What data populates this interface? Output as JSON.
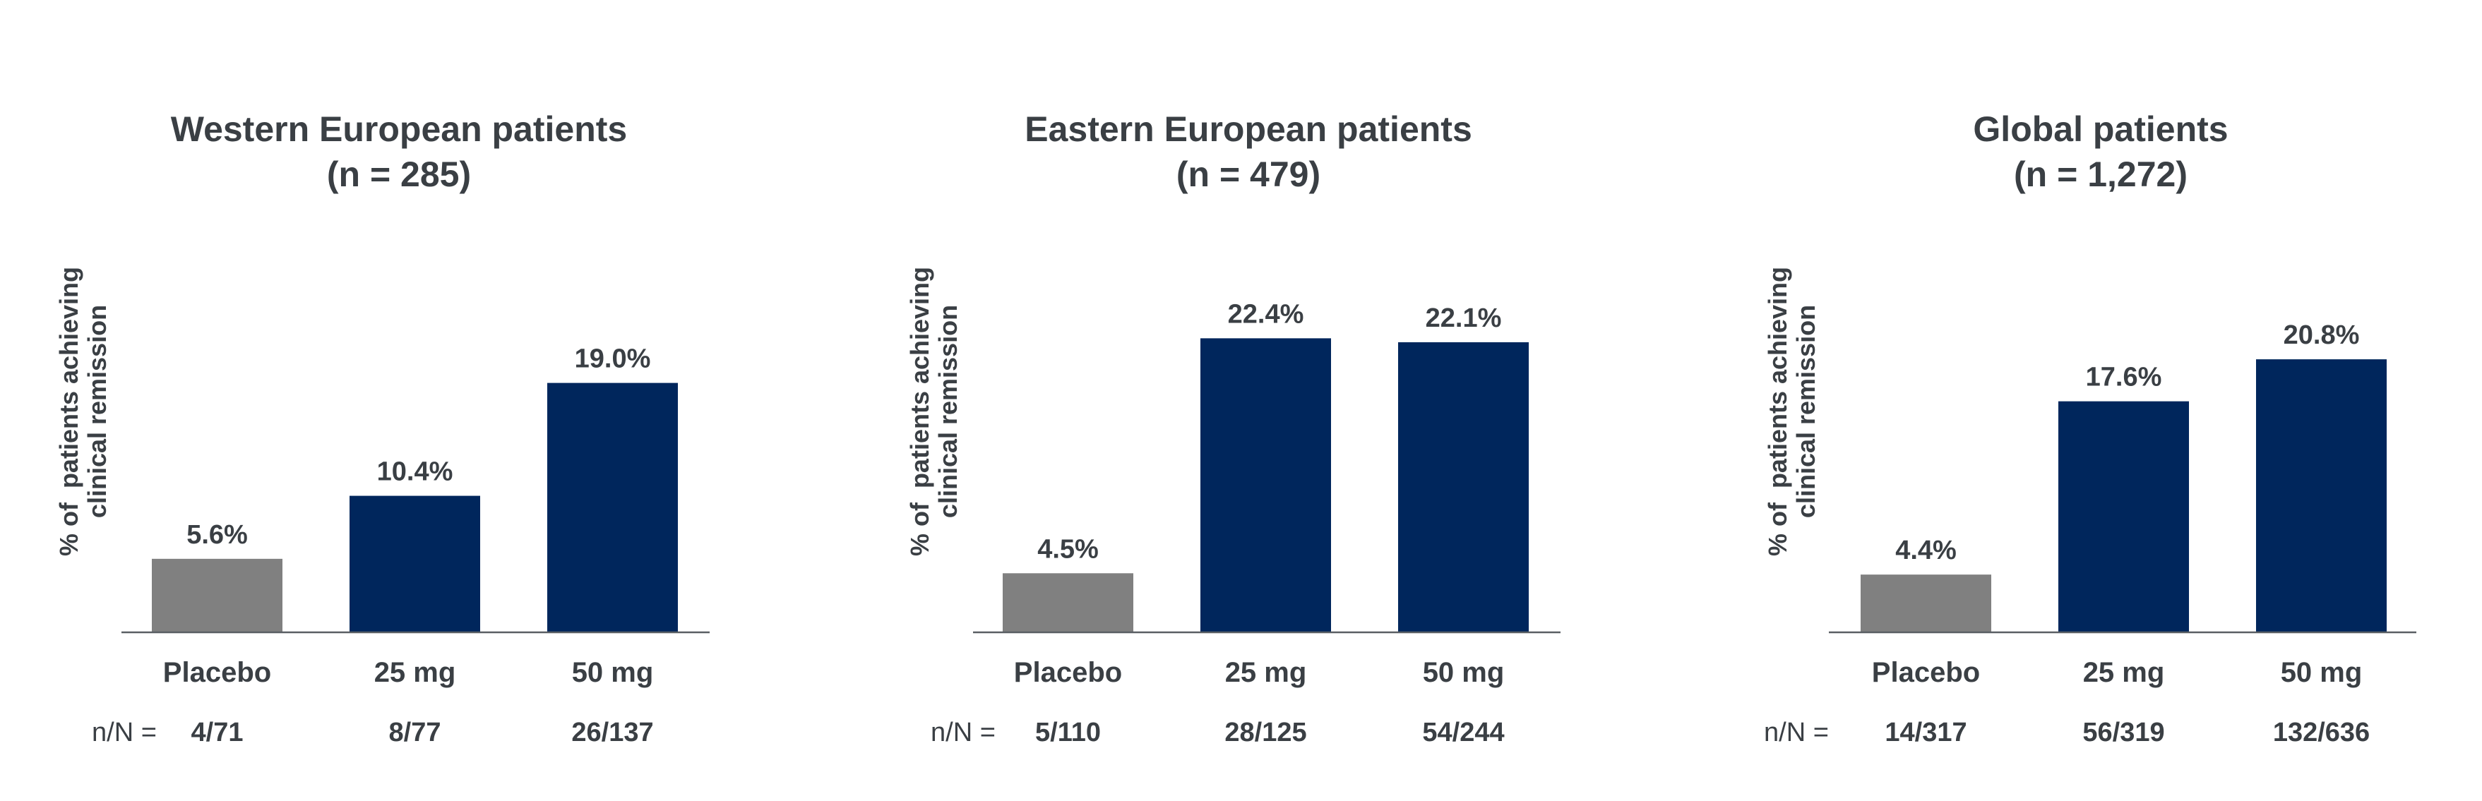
{
  "colors": {
    "text": "#3a3f44",
    "placebo": "#808080",
    "treatment": "#00265c",
    "axis": "#5a5f64"
  },
  "nN_label": "n/N =",
  "chart_data": [
    {
      "type": "bar",
      "title": "Western European patients",
      "subtitle": "(n = 285)",
      "ylabel_lines": [
        "% of  patients achieving",
        "clinical remission"
      ],
      "ylim": [
        0,
        30
      ],
      "categories": [
        "Placebo",
        "25 mg",
        "50 mg"
      ],
      "values": [
        5.6,
        10.4,
        19.0
      ],
      "value_labels": [
        "5.6%",
        "10.4%",
        "19.0%"
      ],
      "nN": [
        "4/71",
        "8/77",
        "26/137"
      ]
    },
    {
      "type": "bar",
      "title": "Eastern European patients",
      "subtitle": "(n = 479)",
      "ylabel_lines": [
        "% of  patients achieving",
        "clinical remission"
      ],
      "ylim": [
        0,
        30
      ],
      "categories": [
        "Placebo",
        "25 mg",
        "50 mg"
      ],
      "values": [
        4.5,
        22.4,
        22.1
      ],
      "value_labels": [
        "4.5%",
        "22.4%",
        "22.1%"
      ],
      "nN": [
        "5/110",
        "28/125",
        "54/244"
      ]
    },
    {
      "type": "bar",
      "title": "Global patients",
      "subtitle": "(n = 1,272)",
      "ylabel_lines": [
        "% of  patients achieving",
        "clinical remission"
      ],
      "ylim": [
        0,
        30
      ],
      "categories": [
        "Placebo",
        "25 mg",
        "50 mg"
      ],
      "values": [
        4.4,
        17.6,
        20.8
      ],
      "value_labels": [
        "4.4%",
        "17.6%",
        "20.8%"
      ],
      "nN": [
        "14/317",
        "56/319",
        "132/636"
      ]
    }
  ]
}
